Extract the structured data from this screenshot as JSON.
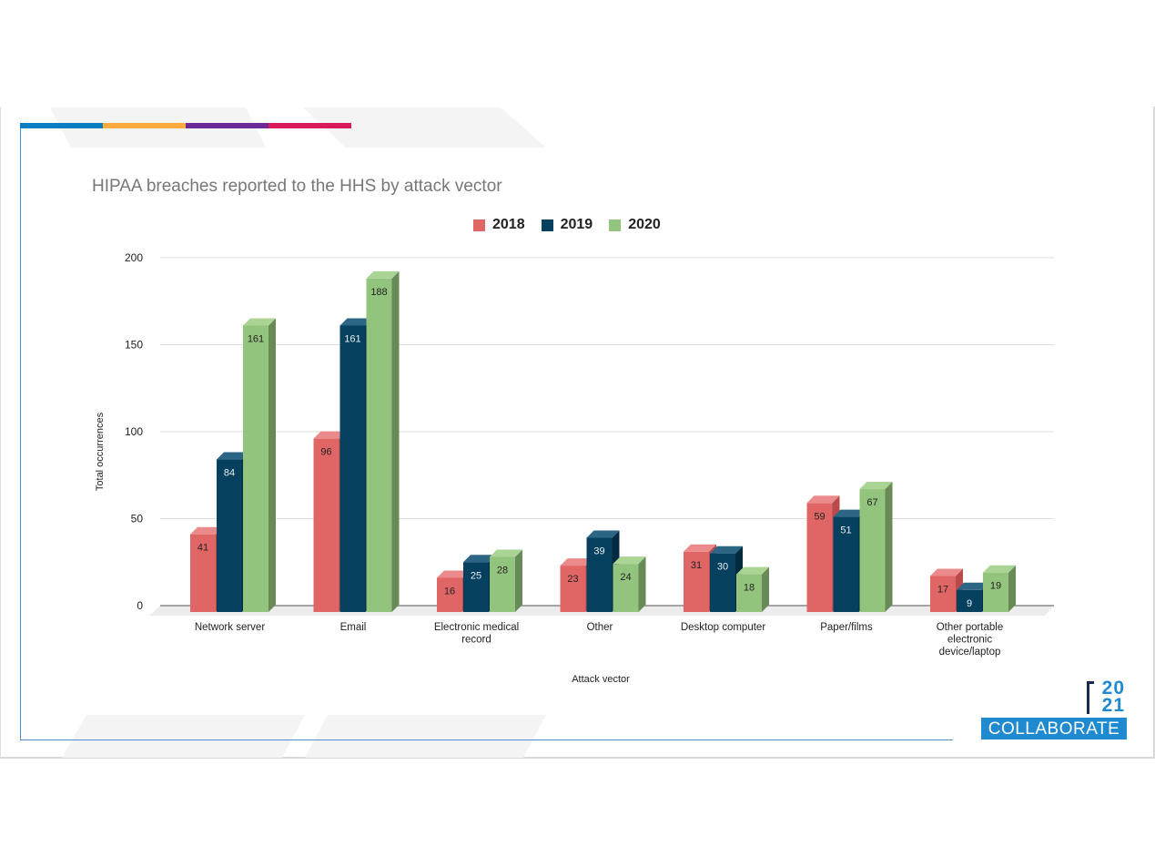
{
  "slide": {
    "stripe_colors": [
      "#0a7ec2",
      "#fbab3b",
      "#6b2a96",
      "#d91b5c"
    ],
    "logo": {
      "year_line1": "20",
      "year_line2": "21",
      "text": "COLLABORATE",
      "color": "#1f8ad0"
    }
  },
  "chart_data": {
    "type": "bar",
    "style": "3d-clustered",
    "title": "HIPAA breaches reported to the HHS by attack vector",
    "xlabel": "Attack vector",
    "ylabel": "Total occurrences",
    "ylim": [
      0,
      200
    ],
    "yticks": [
      0,
      50,
      100,
      150,
      200
    ],
    "grid": true,
    "legend_position": "top-center",
    "categories": [
      [
        "Network server"
      ],
      [
        "Email"
      ],
      [
        "Electronic medical",
        "record"
      ],
      [
        "Other"
      ],
      [
        "Desktop computer"
      ],
      [
        "Paper/films"
      ],
      [
        "Other portable",
        "electronic",
        "device/laptop"
      ]
    ],
    "series": [
      {
        "name": "2018",
        "color": "#e06666",
        "side": "#b84a4a",
        "top": "#ea8a8a",
        "label_color": "#222222",
        "values": [
          41,
          96,
          16,
          23,
          31,
          59,
          17
        ]
      },
      {
        "name": "2019",
        "color": "#05405e",
        "side": "#032a3f",
        "top": "#2d6585",
        "label_color": "#e8eef3",
        "values": [
          84,
          161,
          25,
          39,
          30,
          51,
          9
        ]
      },
      {
        "name": "2020",
        "color": "#93c47d",
        "side": "#678a57",
        "top": "#a9d494",
        "label_color": "#222222",
        "values": [
          161,
          188,
          28,
          24,
          18,
          67,
          19
        ]
      }
    ]
  }
}
